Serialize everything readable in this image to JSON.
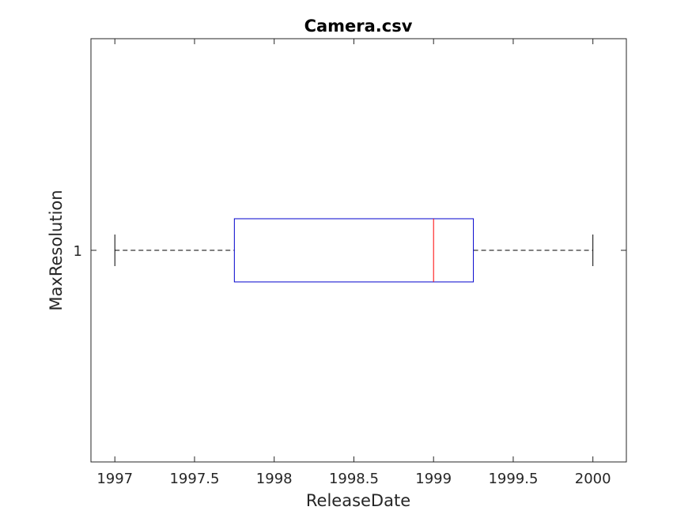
{
  "chart_data": {
    "type": "boxplot",
    "orientation": "horizontal",
    "title": "Camera.csv",
    "xlabel": "ReleaseDate",
    "ylabel": "MaxResolution",
    "xlim": [
      1996.85,
      2000.21
    ],
    "x_ticks": [
      1997,
      1997.5,
      1998,
      1998.5,
      1999,
      1999.5,
      2000
    ],
    "x_tick_labels": [
      "1997",
      "1997.5",
      "1998",
      "1998.5",
      "1999",
      "1999.5",
      "2000"
    ],
    "y_ticks": [
      1
    ],
    "y_tick_labels": [
      "1"
    ],
    "grid": false,
    "boxes": [
      {
        "category": "1",
        "whisker_low": 1997,
        "q1": 1997.75,
        "median": 1999,
        "q3": 1999.25,
        "whisker_high": 2000
      }
    ],
    "colors": {
      "box": "#0000cc",
      "median": "#ff0000",
      "whisker": "#000000",
      "axes": "#262626"
    }
  }
}
